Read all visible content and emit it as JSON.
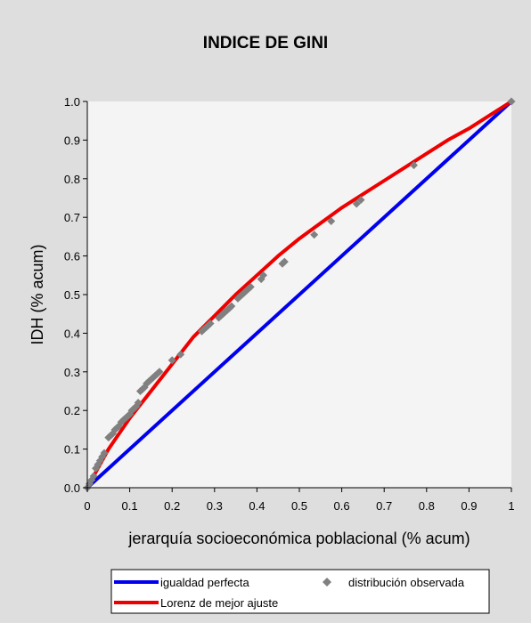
{
  "chart_data": {
    "type": "line",
    "title": "INDICE DE GINI",
    "xlabel": "jerarquía socioeconómica poblacional (% acum)",
    "ylabel": "IDH (% acum)",
    "xlim": [
      0,
      1
    ],
    "ylim": [
      0,
      1
    ],
    "x_ticks": [
      "0",
      "0.1",
      "0.2",
      "0.3",
      "0.4",
      "0.5",
      "0.6",
      "0.7",
      "0.8",
      "0.9",
      "1"
    ],
    "y_ticks": [
      "0.0",
      "0.1",
      "0.2",
      "0.3",
      "0.4",
      "0.5",
      "0.6",
      "0.7",
      "0.8",
      "0.9",
      "1.0"
    ],
    "grid": false,
    "legend_position": "bottom",
    "series": [
      {
        "name": "igualdad perfecta",
        "kind": "line",
        "color": "#0000ee",
        "x": [
          0,
          1
        ],
        "y": [
          0,
          1
        ]
      },
      {
        "name": "Lorenz de mejor ajuste",
        "kind": "line",
        "color": "#ee0000",
        "x": [
          0,
          0.02,
          0.05,
          0.1,
          0.15,
          0.2,
          0.25,
          0.3,
          0.35,
          0.4,
          0.45,
          0.5,
          0.55,
          0.6,
          0.65,
          0.7,
          0.75,
          0.8,
          0.85,
          0.9,
          0.95,
          1
        ],
        "y": [
          0,
          0.04,
          0.1,
          0.18,
          0.25,
          0.32,
          0.39,
          0.445,
          0.5,
          0.55,
          0.6,
          0.645,
          0.685,
          0.725,
          0.76,
          0.795,
          0.83,
          0.865,
          0.9,
          0.93,
          0.965,
          1
        ]
      },
      {
        "name": "distribución observada",
        "kind": "scatter",
        "color": "#808080",
        "x": [
          0,
          0.005,
          0.01,
          0.015,
          0.02,
          0.025,
          0.03,
          0.035,
          0.04,
          0.05,
          0.055,
          0.06,
          0.065,
          0.07,
          0.075,
          0.08,
          0.085,
          0.09,
          0.095,
          0.1,
          0.105,
          0.11,
          0.115,
          0.12,
          0.125,
          0.13,
          0.135,
          0.14,
          0.145,
          0.15,
          0.155,
          0.16,
          0.165,
          0.17,
          0.2,
          0.22,
          0.27,
          0.275,
          0.28,
          0.285,
          0.29,
          0.31,
          0.315,
          0.32,
          0.325,
          0.33,
          0.335,
          0.34,
          0.355,
          0.36,
          0.365,
          0.37,
          0.375,
          0.38,
          0.385,
          0.41,
          0.415,
          0.46,
          0.465,
          0.535,
          0.575,
          0.635,
          0.645,
          0.77,
          1
        ],
        "y": [
          0,
          0.01,
          0.02,
          0.03,
          0.05,
          0.06,
          0.07,
          0.08,
          0.09,
          0.13,
          0.135,
          0.14,
          0.15,
          0.155,
          0.16,
          0.17,
          0.175,
          0.18,
          0.185,
          0.19,
          0.2,
          0.205,
          0.21,
          0.22,
          0.25,
          0.255,
          0.26,
          0.27,
          0.275,
          0.28,
          0.285,
          0.29,
          0.295,
          0.3,
          0.33,
          0.345,
          0.405,
          0.41,
          0.415,
          0.42,
          0.425,
          0.44,
          0.445,
          0.45,
          0.455,
          0.46,
          0.465,
          0.47,
          0.49,
          0.495,
          0.5,
          0.505,
          0.51,
          0.515,
          0.52,
          0.54,
          0.55,
          0.58,
          0.585,
          0.655,
          0.69,
          0.735,
          0.745,
          0.835,
          1
        ]
      }
    ]
  }
}
